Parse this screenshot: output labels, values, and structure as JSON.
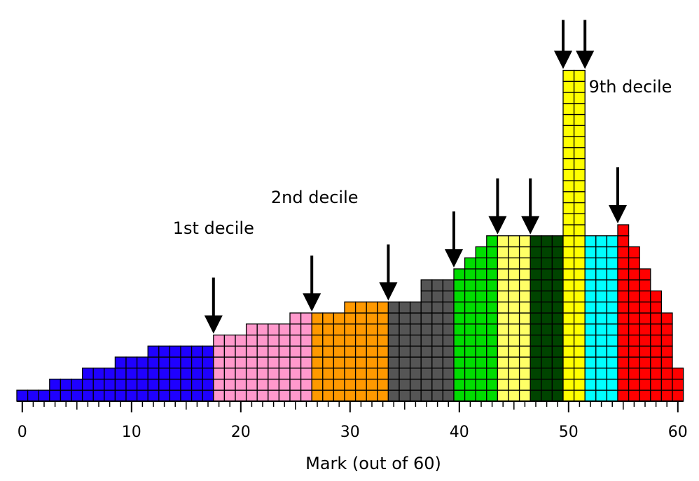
{
  "chart_data": {
    "type": "bar",
    "xlabel": "Mark (out of 60)",
    "ylabel": "",
    "xlim": [
      0,
      60
    ],
    "x_ticks": [
      0,
      10,
      20,
      30,
      40,
      50,
      60
    ],
    "x_tick_labels": [
      "0",
      "10",
      "20",
      "30",
      "40",
      "50",
      "60"
    ],
    "marks": [
      0,
      1,
      2,
      3,
      4,
      5,
      6,
      7,
      8,
      9,
      10,
      11,
      12,
      13,
      14,
      15,
      16,
      17,
      18,
      19,
      20,
      21,
      22,
      23,
      24,
      25,
      26,
      27,
      28,
      29,
      30,
      31,
      32,
      33,
      34,
      35,
      36,
      37,
      38,
      39,
      40,
      41,
      42,
      43,
      44,
      45,
      46,
      47,
      48,
      49,
      50,
      51,
      52,
      53,
      54,
      55,
      56,
      57,
      58,
      59,
      60
    ],
    "counts": [
      1,
      1,
      1,
      2,
      2,
      2,
      3,
      3,
      3,
      4,
      4,
      4,
      5,
      5,
      5,
      5,
      5,
      5,
      6,
      6,
      6,
      7,
      7,
      7,
      7,
      8,
      8,
      8,
      8,
      8,
      9,
      9,
      9,
      9,
      9,
      9,
      9,
      11,
      11,
      11,
      12,
      13,
      14,
      15,
      15,
      15,
      15,
      15,
      15,
      15,
      30,
      30,
      15,
      15,
      15,
      16,
      14,
      12,
      10,
      8,
      3
    ],
    "decile_groups": [
      {
        "from": 0,
        "to": 17,
        "color": "#1f00ff"
      },
      {
        "from": 18,
        "to": 26,
        "color": "#ff99cc"
      },
      {
        "from": 27,
        "to": 33,
        "color": "#ff9900"
      },
      {
        "from": 34,
        "to": 39,
        "color": "#555555"
      },
      {
        "from": 40,
        "to": 43,
        "color": "#00dd00"
      },
      {
        "from": 44,
        "to": 46,
        "color": "#ffff66"
      },
      {
        "from": 47,
        "to": 49,
        "color": "#004400"
      },
      {
        "from": 50,
        "to": 51,
        "color": "#ffff00"
      },
      {
        "from": 52,
        "to": 54,
        "color": "#00ffff"
      },
      {
        "from": 55,
        "to": 60,
        "color": "#ff0000"
      }
    ],
    "decile_boundaries": [
      17.5,
      26.5,
      33.5,
      39.5,
      43.5,
      46.5,
      49.5,
      51.5,
      54.5
    ],
    "annotations": [
      {
        "text": "1st decile",
        "x": 17.5
      },
      {
        "text": "2nd decile",
        "x": 26.5
      },
      {
        "text": "9th decile",
        "x": 54.5
      }
    ],
    "legend": "none",
    "grid": false
  }
}
